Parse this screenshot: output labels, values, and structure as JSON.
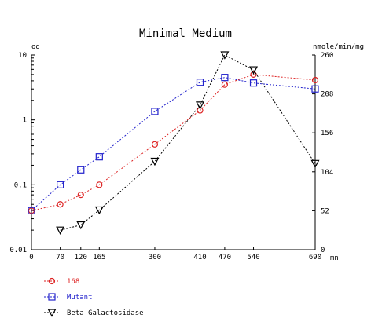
{
  "chart_data": {
    "type": "line",
    "title": "Minimal Medium",
    "y_left": {
      "label": "od",
      "scale": "log",
      "range": [
        0.01,
        10
      ],
      "ticks": [
        0.01,
        0.1,
        1,
        10
      ],
      "tick_labels": [
        "0.01",
        "0.1",
        "1",
        "10"
      ]
    },
    "y_right": {
      "label": "nmole/min/mg",
      "scale": "linear",
      "range": [
        0,
        260
      ],
      "ticks": [
        0,
        52,
        104,
        156,
        208,
        260
      ],
      "tick_labels": [
        "0",
        "52",
        "104",
        "156",
        "208",
        "260"
      ]
    },
    "x_axis": {
      "label": "mn",
      "range": [
        0,
        690
      ],
      "ticks": [
        0,
        70,
        120,
        165,
        300,
        410,
        470,
        540,
        690
      ],
      "tick_labels": [
        "0",
        "70",
        "120",
        "165",
        "300",
        "410",
        "470",
        "540",
        "690"
      ]
    },
    "series": [
      {
        "name": "168",
        "axis": "left",
        "color": "#dd2222",
        "marker": "circle",
        "x": [
          0,
          70,
          120,
          165,
          300,
          410,
          470,
          540,
          690
        ],
        "y": [
          0.04,
          0.05,
          0.07,
          0.1,
          0.42,
          1.4,
          3.5,
          5,
          4.1
        ]
      },
      {
        "name": "Mutant",
        "axis": "left",
        "color": "#2222cc",
        "marker": "square",
        "x": [
          0,
          70,
          120,
          165,
          300,
          410,
          470,
          540,
          690
        ],
        "y": [
          0.04,
          0.1,
          0.17,
          0.27,
          1.35,
          3.8,
          4.5,
          3.7,
          3.0
        ]
      },
      {
        "name": "Beta Galactosidase",
        "axis": "right",
        "color": "#000000",
        "marker": "triangle-down",
        "x": [
          70,
          120,
          165,
          300,
          410,
          470,
          540,
          690
        ],
        "y": [
          26,
          33,
          53,
          118,
          193,
          260,
          240,
          115
        ]
      }
    ]
  }
}
